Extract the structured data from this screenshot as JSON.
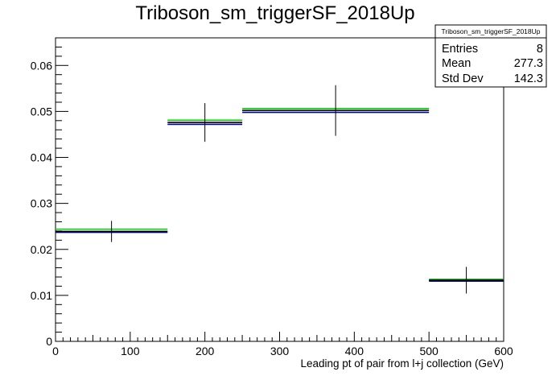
{
  "chart_data": {
    "type": "histogram",
    "title": "Triboson_sm_triggerSF_2018Up",
    "xlabel": "Leading pt of pair from l+j collection (GeV)",
    "ylabel": "",
    "xlim": [
      0,
      600
    ],
    "ylim": [
      0,
      0.066
    ],
    "x_ticks": [
      0,
      100,
      200,
      300,
      400,
      500,
      600
    ],
    "y_ticks": [
      0,
      0.01,
      0.02,
      0.03,
      0.04,
      0.05,
      0.06
    ],
    "y_tick_labels": [
      "0",
      "0.01",
      "0.02",
      "0.03",
      "0.04",
      "0.05",
      "0.06"
    ],
    "bins": [
      {
        "x_low": 0,
        "x_high": 150,
        "x_center": 75,
        "value": 0.0239,
        "error": 0.0023
      },
      {
        "x_low": 150,
        "x_high": 250,
        "x_center": 200,
        "value": 0.0476,
        "error": 0.0042
      },
      {
        "x_low": 250,
        "x_high": 500,
        "x_center": 375,
        "value": 0.0502,
        "error": 0.0055
      },
      {
        "x_low": 500,
        "x_high": 600,
        "x_center": 550,
        "value": 0.0133,
        "error": 0.0029
      }
    ],
    "series": [
      {
        "color": "#00cc00",
        "values": [
          0.0244,
          0.0481,
          0.0506,
          0.0135
        ]
      },
      {
        "color": "#000099",
        "values": [
          0.0237,
          0.0472,
          0.0498,
          0.0131
        ]
      },
      {
        "color": "#000000",
        "values": [
          0.0239,
          0.0476,
          0.0502,
          0.0133
        ]
      }
    ],
    "stats_box": {
      "title": "Triboson_sm_triggerSF_2018Up",
      "rows": [
        {
          "label": "Entries",
          "value": "8"
        },
        {
          "label": "Mean",
          "value": "277.3"
        },
        {
          "label": "Std Dev",
          "value": "142.3"
        }
      ],
      "placement": "top-right"
    },
    "grid": false
  }
}
